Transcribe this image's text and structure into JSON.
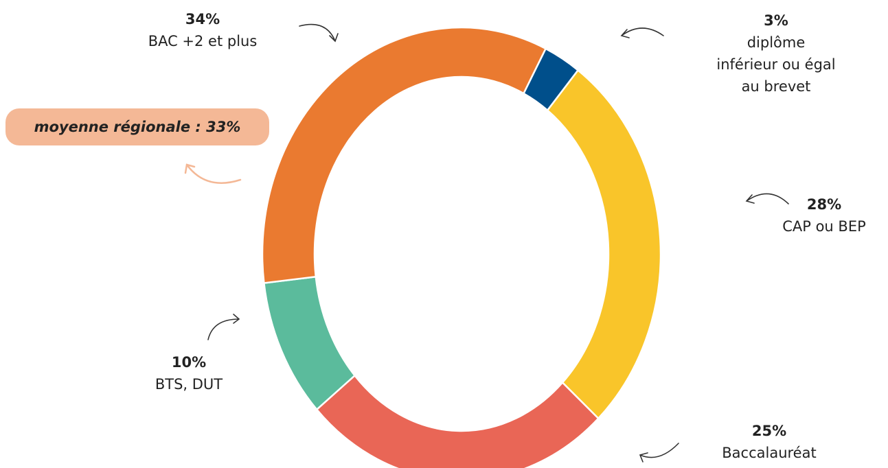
{
  "chart_data": {
    "type": "donut",
    "categories": [
      "diplôme inférieur ou égal au brevet",
      "CAP ou BEP",
      "Baccalauréat",
      "BTS, DUT",
      "BAC +2 et plus"
    ],
    "values": [
      3,
      28,
      25,
      10,
      34
    ],
    "value_labels": [
      "3%",
      "28%",
      "25%",
      "10%",
      "34%"
    ],
    "colors": [
      "#004f8b",
      "#f9c52a",
      "#e96656",
      "#5bbb9c",
      "#ea7a30"
    ],
    "annotation": "moyenne régionale : 33%"
  }
}
